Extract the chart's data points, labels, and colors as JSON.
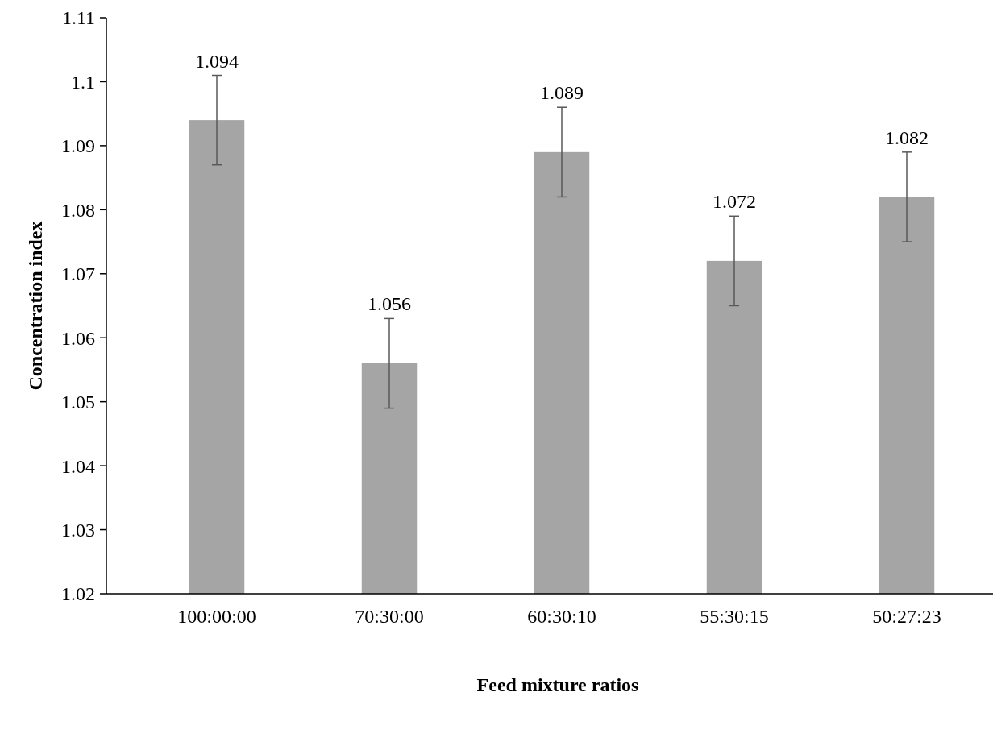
{
  "chart_data": {
    "type": "bar",
    "xlabel": "Feed mixture ratios",
    "ylabel": "Concentration index",
    "categories": [
      "100:00:00",
      "70:30:00",
      "60:30:10",
      "55:30:15",
      "50:27:23"
    ],
    "values": [
      1.094,
      1.056,
      1.089,
      1.072,
      1.082
    ],
    "errors": [
      0.007,
      0.007,
      0.007,
      0.007,
      0.007
    ],
    "color": "#a5a5a5",
    "ylim": [
      1.02,
      1.11
    ],
    "yticks": [
      1.02,
      1.03,
      1.04,
      1.05,
      1.06,
      1.07,
      1.08,
      1.09,
      1.1,
      1.11
    ],
    "data_labels": true
  }
}
